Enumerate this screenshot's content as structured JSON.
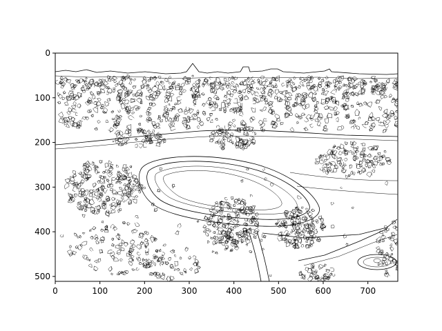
{
  "figure": {
    "image_content": "edge-detected-park-landscape",
    "line_color": "#000000",
    "background_color": "#ffffff",
    "x_axis": {
      "range": [
        0,
        767
      ],
      "ticks": [
        0,
        100,
        200,
        300,
        400,
        500,
        600,
        700
      ],
      "tick_labels": [
        "0",
        "100",
        "200",
        "300",
        "400",
        "500",
        "600",
        "700"
      ]
    },
    "y_axis": {
      "range": [
        0,
        511
      ],
      "inverted": true,
      "ticks": [
        0,
        100,
        200,
        300,
        400,
        500
      ],
      "tick_labels": [
        "0",
        "100",
        "200",
        "300",
        "400",
        "500"
      ]
    }
  }
}
